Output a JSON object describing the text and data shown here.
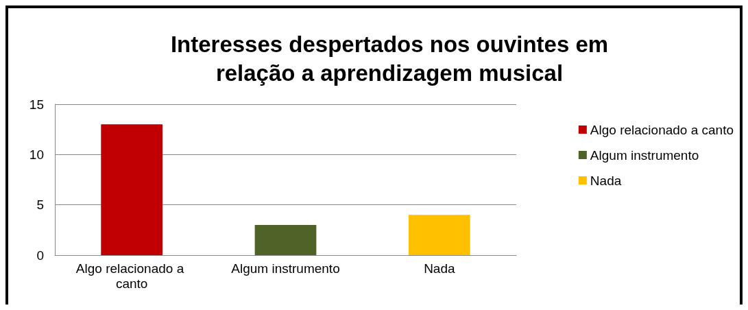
{
  "chart_data": {
    "type": "bar",
    "title": "Interesses despertados nos ouvintes em\nrelação a aprendizagem musical",
    "categories": [
      "Algo relacionado a canto",
      "Algum instrumento",
      "Nada"
    ],
    "series": [
      {
        "name": "Algo relacionado a canto",
        "color": "#c00000",
        "values": [
          13,
          null,
          null
        ]
      },
      {
        "name": "Algum instrumento",
        "color": "#4f6228",
        "values": [
          null,
          3,
          null
        ]
      },
      {
        "name": "Nada",
        "color": "#ffc000",
        "values": [
          null,
          null,
          4
        ]
      }
    ],
    "ylim": [
      0,
      15
    ],
    "yticks": [
      0,
      5,
      10,
      15
    ],
    "grid": "y",
    "legend": "right"
  }
}
